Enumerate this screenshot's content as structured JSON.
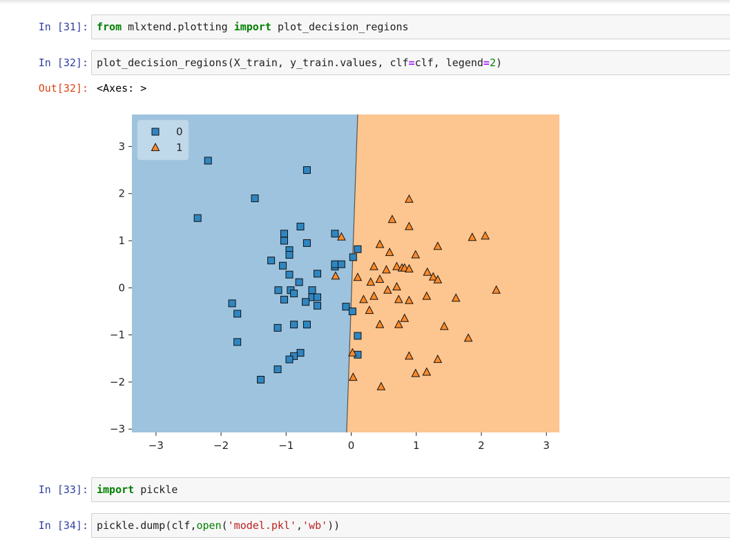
{
  "cells": [
    {
      "prompt": "In [31]:",
      "tokens": [
        {
          "t": "from",
          "c": "kw"
        },
        {
          "t": " mlxtend.plotting ",
          "c": ""
        },
        {
          "t": "import",
          "c": "kw"
        },
        {
          "t": " plot_decision_regions",
          "c": ""
        }
      ]
    },
    {
      "prompt": "In [32]:",
      "tokens": [
        {
          "t": "plot_decision_regions(X_train, y_train.values, clf",
          "c": ""
        },
        {
          "t": "=",
          "c": "op"
        },
        {
          "t": "clf, legend",
          "c": ""
        },
        {
          "t": "=",
          "c": "op"
        },
        {
          "t": "2",
          "c": "num"
        },
        {
          "t": ")",
          "c": ""
        }
      ]
    },
    {
      "prompt": "In [33]:",
      "tokens": [
        {
          "t": "import",
          "c": "kw"
        },
        {
          "t": " pickle",
          "c": ""
        }
      ]
    },
    {
      "prompt": "In [34]:",
      "tokens": [
        {
          "t": "pickle.dump(clf,",
          "c": ""
        },
        {
          "t": "open",
          "c": "bi"
        },
        {
          "t": "(",
          "c": ""
        },
        {
          "t": "'model.pkl'",
          "c": "str"
        },
        {
          "t": ",",
          "c": ""
        },
        {
          "t": "'wb'",
          "c": "str"
        },
        {
          "t": "))",
          "c": ""
        }
      ]
    }
  ],
  "output": {
    "prompt": "Out[32]:",
    "text": "<Axes: >"
  },
  "colors": {
    "class0_region": "#9dc3df",
    "class1_region": "#fdc58f",
    "class0_marker": "#2f86c0",
    "class1_marker": "#ff8a2a",
    "prompt_in": "#303f9f",
    "prompt_out": "#d84315"
  },
  "chart_data": {
    "type": "scatter",
    "title": "",
    "xlabel": "",
    "ylabel": "",
    "xlim": [
      -3.37,
      3.2
    ],
    "ylim": [
      -3.07,
      3.68
    ],
    "xticks": [
      -3,
      -2,
      -1,
      0,
      1,
      2,
      3
    ],
    "yticks": [
      -3,
      -2,
      -1,
      0,
      1,
      2,
      3
    ],
    "legend": {
      "placement": "upper-left",
      "entries": [
        "0",
        "1"
      ]
    },
    "decision_boundary": [
      [
        0.1,
        3.68
      ],
      [
        -0.07,
        -3.07
      ]
    ],
    "series": [
      {
        "name": "0",
        "marker": "square",
        "points": [
          [
            -2.2,
            2.7
          ],
          [
            -0.68,
            2.5
          ],
          [
            -1.48,
            1.9
          ],
          [
            -2.36,
            1.48
          ],
          [
            -0.78,
            1.3
          ],
          [
            -1.03,
            1.15
          ],
          [
            -1.03,
            1.0
          ],
          [
            -0.68,
            0.95
          ],
          [
            -0.25,
            1.15
          ],
          [
            -0.95,
            0.8
          ],
          [
            -0.95,
            0.7
          ],
          [
            -1.23,
            0.58
          ],
          [
            -1.05,
            0.47
          ],
          [
            -0.95,
            0.28
          ],
          [
            -0.52,
            0.3
          ],
          [
            -0.25,
            0.45
          ],
          [
            -0.25,
            0.5
          ],
          [
            -0.15,
            0.5
          ],
          [
            0.1,
            0.82
          ],
          [
            0.03,
            0.65
          ],
          [
            -0.8,
            0.12
          ],
          [
            -1.12,
            -0.05
          ],
          [
            -0.93,
            -0.05
          ],
          [
            -0.88,
            -0.12
          ],
          [
            -0.6,
            -0.05
          ],
          [
            -0.6,
            -0.2
          ],
          [
            -0.52,
            -0.2
          ],
          [
            -1.03,
            -0.25
          ],
          [
            -0.7,
            -0.3
          ],
          [
            -0.52,
            -0.38
          ],
          [
            -0.08,
            -0.4
          ],
          [
            0.02,
            -0.5
          ],
          [
            -1.83,
            -0.33
          ],
          [
            -1.75,
            -0.55
          ],
          [
            -0.88,
            -0.78
          ],
          [
            -0.68,
            -0.78
          ],
          [
            -1.13,
            -0.85
          ],
          [
            -1.75,
            -1.15
          ],
          [
            0.1,
            -1.02
          ],
          [
            -0.78,
            -1.38
          ],
          [
            -0.88,
            -1.45
          ],
          [
            -0.95,
            -1.52
          ],
          [
            0.1,
            -1.42
          ],
          [
            -1.13,
            -1.73
          ],
          [
            -1.39,
            -1.95
          ]
        ]
      },
      {
        "name": "1",
        "marker": "triangle",
        "points": [
          [
            0.89,
            1.88
          ],
          [
            0.63,
            1.45
          ],
          [
            0.89,
            1.3
          ],
          [
            -0.15,
            1.08
          ],
          [
            1.86,
            1.07
          ],
          [
            2.06,
            1.1
          ],
          [
            0.44,
            0.92
          ],
          [
            1.33,
            0.88
          ],
          [
            0.59,
            0.75
          ],
          [
            0.99,
            0.7
          ],
          [
            0.35,
            0.45
          ],
          [
            0.7,
            0.45
          ],
          [
            0.78,
            0.42
          ],
          [
            0.82,
            0.42
          ],
          [
            0.89,
            0.4
          ],
          [
            0.54,
            0.38
          ],
          [
            1.17,
            0.33
          ],
          [
            1.26,
            0.23
          ],
          [
            1.33,
            0.17
          ],
          [
            -0.24,
            0.25
          ],
          [
            0.1,
            0.22
          ],
          [
            0.44,
            0.18
          ],
          [
            0.3,
            0.12
          ],
          [
            0.7,
            0.02
          ],
          [
            0.56,
            -0.05
          ],
          [
            2.23,
            -0.05
          ],
          [
            0.35,
            -0.18
          ],
          [
            1.16,
            -0.18
          ],
          [
            1.61,
            -0.22
          ],
          [
            0.19,
            -0.25
          ],
          [
            0.73,
            -0.25
          ],
          [
            0.89,
            -0.27
          ],
          [
            0.28,
            -0.48
          ],
          [
            0.82,
            -0.65
          ],
          [
            0.44,
            -0.78
          ],
          [
            0.73,
            -0.78
          ],
          [
            1.43,
            -0.82
          ],
          [
            1.8,
            -1.07
          ],
          [
            0.02,
            -1.38
          ],
          [
            0.89,
            -1.45
          ],
          [
            1.33,
            -1.52
          ],
          [
            0.99,
            -1.82
          ],
          [
            1.16,
            -1.79
          ],
          [
            0.03,
            -1.9
          ],
          [
            0.46,
            -2.1
          ]
        ]
      }
    ]
  }
}
